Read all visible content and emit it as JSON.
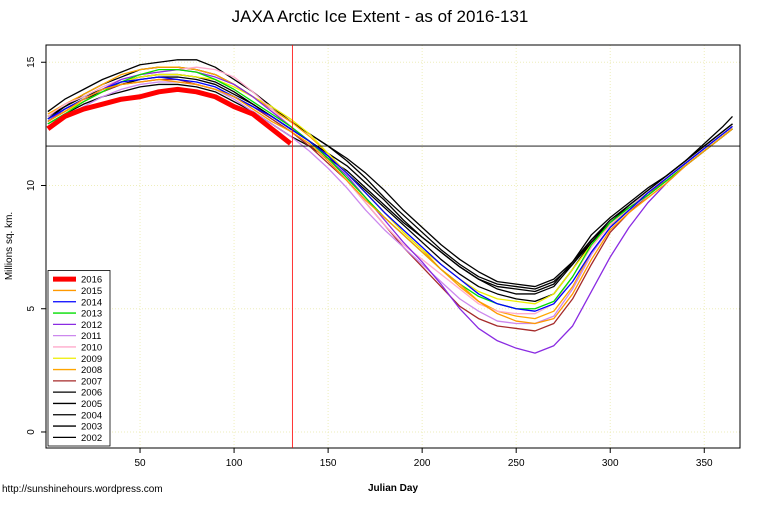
{
  "chart_data": {
    "type": "line",
    "title": "JAXA Arctic Ice Extent - as of 2016-131",
    "x_label": "Julian Day",
    "y_label": "Millions sq. km.",
    "source": "http://sunshinehours.wordpress.com",
    "xlim": [
      0,
      369
    ],
    "ylim": [
      -0.65,
      15.7
    ],
    "xticks": [
      50,
      100,
      150,
      200,
      250,
      300,
      350
    ],
    "yticks": [
      0,
      5,
      10,
      15
    ],
    "grid": true,
    "legend": "bottomleft",
    "hline": 11.6,
    "vline": 131,
    "x": [
      1,
      10,
      20,
      30,
      40,
      50,
      60,
      70,
      80,
      90,
      100,
      110,
      120,
      130,
      140,
      150,
      160,
      170,
      180,
      190,
      200,
      210,
      220,
      230,
      240,
      250,
      260,
      270,
      280,
      290,
      300,
      310,
      320,
      330,
      340,
      350,
      360,
      365
    ],
    "series": [
      {
        "name": "2016",
        "color": "#ff0000",
        "values": [
          12.3,
          12.8,
          13.1,
          13.3,
          13.5,
          13.6,
          13.8,
          13.9,
          13.8,
          13.6,
          13.2,
          12.9,
          12.3,
          11.7,
          null,
          null,
          null,
          null,
          null,
          null,
          null,
          null,
          null,
          null,
          null,
          null,
          null,
          null,
          null,
          null,
          null,
          null,
          null,
          null,
          null,
          null,
          null,
          null
        ]
      },
      {
        "name": "2015",
        "color": "#ff9900",
        "values": [
          12.6,
          13.0,
          13.5,
          13.9,
          14.1,
          14.2,
          14.3,
          14.2,
          14.1,
          13.9,
          13.6,
          13.1,
          12.6,
          12.2,
          11.7,
          11.0,
          10.2,
          9.4,
          8.7,
          8.0,
          7.3,
          6.6,
          6.0,
          5.3,
          4.8,
          4.5,
          4.4,
          4.6,
          5.6,
          7.0,
          8.2,
          8.9,
          9.5,
          10.1,
          10.8,
          11.4,
          12.0,
          12.3
        ]
      },
      {
        "name": "2014",
        "color": "#0000ff",
        "values": [
          12.7,
          13.1,
          13.5,
          13.9,
          14.2,
          14.3,
          14.4,
          14.3,
          14.2,
          14.0,
          13.6,
          13.2,
          12.8,
          12.3,
          11.8,
          11.2,
          10.5,
          9.7,
          8.9,
          8.2,
          7.5,
          6.8,
          6.2,
          5.6,
          5.2,
          5.0,
          4.9,
          5.2,
          6.1,
          7.3,
          8.3,
          9.0,
          9.7,
          10.3,
          10.9,
          11.5,
          12.1,
          12.4
        ]
      },
      {
        "name": "2013",
        "color": "#00dd00",
        "values": [
          12.5,
          12.9,
          13.4,
          13.8,
          14.2,
          14.5,
          14.7,
          14.7,
          14.6,
          14.3,
          13.9,
          13.4,
          12.9,
          12.4,
          11.8,
          11.1,
          10.3,
          9.5,
          8.7,
          8.0,
          7.3,
          6.6,
          6.0,
          5.5,
          5.2,
          5.0,
          5.0,
          5.3,
          6.3,
          7.6,
          8.5,
          9.1,
          9.6,
          10.2,
          10.8,
          11.4,
          12.0,
          12.3
        ]
      },
      {
        "name": "2012",
        "color": "#8a2be2",
        "values": [
          12.6,
          13.1,
          13.5,
          13.9,
          14.3,
          14.5,
          14.6,
          14.7,
          14.6,
          14.4,
          14.1,
          13.6,
          13.0,
          12.4,
          11.8,
          11.1,
          10.4,
          9.5,
          8.6,
          7.7,
          6.9,
          6.0,
          5.0,
          4.2,
          3.7,
          3.4,
          3.2,
          3.5,
          4.3,
          5.7,
          7.1,
          8.3,
          9.3,
          10.1,
          10.8,
          11.4,
          12.0,
          12.3
        ]
      },
      {
        "name": "2011",
        "color": "#cc88ee",
        "values": [
          12.4,
          12.8,
          13.2,
          13.6,
          13.9,
          14.1,
          14.2,
          14.2,
          14.1,
          13.9,
          13.5,
          13.0,
          12.5,
          12.0,
          11.4,
          10.7,
          9.9,
          9.0,
          8.2,
          7.5,
          6.8,
          6.1,
          5.4,
          4.9,
          4.5,
          4.4,
          4.4,
          4.7,
          5.8,
          7.2,
          8.3,
          9.0,
          9.6,
          10.2,
          10.8,
          11.4,
          12.0,
          12.3
        ]
      },
      {
        "name": "2010",
        "color": "#ffaacc",
        "values": [
          12.8,
          13.3,
          13.6,
          14.0,
          14.3,
          14.5,
          14.6,
          14.7,
          14.8,
          14.7,
          14.4,
          13.8,
          13.1,
          12.4,
          11.8,
          11.0,
          10.2,
          9.3,
          8.4,
          7.6,
          7.0,
          6.4,
          5.8,
          5.2,
          4.9,
          4.8,
          4.8,
          5.2,
          6.3,
          7.5,
          8.4,
          9.1,
          9.7,
          10.3,
          10.9,
          11.5,
          12.1,
          12.4
        ]
      },
      {
        "name": "2009",
        "color": "#eeee00",
        "values": [
          12.6,
          13.0,
          13.4,
          13.8,
          14.2,
          14.4,
          14.5,
          14.5,
          14.4,
          14.3,
          14.0,
          13.6,
          13.2,
          12.7,
          12.1,
          11.3,
          10.5,
          9.7,
          8.9,
          8.1,
          7.4,
          6.8,
          6.2,
          5.7,
          5.4,
          5.3,
          5.2,
          5.6,
          6.6,
          7.6,
          8.4,
          9.0,
          9.6,
          10.2,
          10.8,
          11.4,
          12.0,
          12.3
        ]
      },
      {
        "name": "2008",
        "color": "#ffa500",
        "values": [
          12.9,
          13.3,
          13.7,
          14.1,
          14.5,
          14.7,
          14.8,
          14.8,
          14.7,
          14.5,
          14.1,
          13.6,
          13.1,
          12.6,
          12.0,
          11.3,
          10.5,
          9.7,
          8.9,
          8.1,
          7.4,
          6.6,
          5.9,
          5.3,
          4.9,
          4.7,
          4.6,
          4.9,
          5.9,
          7.3,
          8.3,
          9.0,
          9.7,
          10.3,
          10.9,
          11.5,
          12.1,
          12.4
        ]
      },
      {
        "name": "2007",
        "color": "#a52a2a",
        "values": [
          12.6,
          13.0,
          13.4,
          13.8,
          14.1,
          14.2,
          14.3,
          14.3,
          14.1,
          13.9,
          13.6,
          13.2,
          12.7,
          12.2,
          11.6,
          10.9,
          10.2,
          9.3,
          8.4,
          7.5,
          6.7,
          5.9,
          5.1,
          4.6,
          4.3,
          4.2,
          4.1,
          4.4,
          5.4,
          6.8,
          8.1,
          8.9,
          9.6,
          10.3,
          10.9,
          11.5,
          12.1,
          12.4
        ]
      },
      {
        "name": "2006",
        "color": "#000000",
        "values": [
          12.5,
          12.9,
          13.3,
          13.6,
          13.8,
          14.0,
          14.1,
          14.1,
          14.0,
          13.8,
          13.4,
          13.0,
          12.5,
          12.0,
          11.6,
          11.1,
          10.6,
          9.9,
          9.2,
          8.5,
          7.9,
          7.3,
          6.7,
          6.2,
          5.9,
          5.8,
          5.7,
          6.0,
          6.9,
          8.0,
          8.7,
          9.3,
          9.9,
          10.4,
          11.0,
          11.6,
          12.2,
          12.5
        ]
      },
      {
        "name": "2005",
        "color": "#000000",
        "values": [
          12.8,
          13.2,
          13.6,
          13.9,
          14.2,
          14.4,
          14.5,
          14.5,
          14.4,
          14.2,
          13.8,
          13.3,
          12.8,
          12.3,
          11.8,
          11.2,
          10.5,
          9.8,
          9.1,
          8.4,
          7.7,
          7.0,
          6.4,
          5.9,
          5.6,
          5.4,
          5.3,
          5.6,
          6.6,
          7.7,
          8.5,
          9.1,
          9.7,
          10.3,
          10.9,
          11.5,
          12.1,
          12.4
        ]
      },
      {
        "name": "2004",
        "color": "#000000",
        "values": [
          12.7,
          13.2,
          13.7,
          14.1,
          14.4,
          14.7,
          14.8,
          14.8,
          14.7,
          14.5,
          14.1,
          13.6,
          13.1,
          12.6,
          12.1,
          11.6,
          11.0,
          10.3,
          9.5,
          8.8,
          8.1,
          7.4,
          6.8,
          6.3,
          6.0,
          5.9,
          5.8,
          6.1,
          6.8,
          7.7,
          8.4,
          9.0,
          9.6,
          10.2,
          10.8,
          11.4,
          12.0,
          12.3
        ]
      },
      {
        "name": "2003",
        "color": "#000000",
        "values": [
          13.0,
          13.5,
          13.9,
          14.3,
          14.6,
          14.9,
          15.0,
          15.1,
          15.1,
          14.8,
          14.3,
          13.8,
          13.2,
          12.6,
          12.1,
          11.6,
          11.1,
          10.5,
          9.8,
          9.0,
          8.3,
          7.6,
          7.0,
          6.5,
          6.1,
          6.0,
          5.9,
          6.2,
          6.9,
          7.8,
          8.6,
          9.2,
          9.8,
          10.4,
          11.0,
          11.7,
          12.4,
          12.8
        ]
      },
      {
        "name": "2002",
        "color": "#000000",
        "values": [
          12.6,
          13.1,
          13.5,
          13.8,
          14.1,
          14.3,
          14.4,
          14.4,
          14.3,
          14.1,
          13.7,
          13.3,
          12.8,
          12.3,
          11.8,
          11.3,
          10.8,
          10.1,
          9.4,
          8.6,
          7.9,
          7.3,
          6.7,
          6.2,
          5.8,
          5.6,
          5.6,
          5.9,
          6.8,
          7.8,
          8.5,
          9.2,
          9.8,
          10.4,
          11.0,
          11.6,
          12.2,
          12.5
        ]
      }
    ]
  }
}
